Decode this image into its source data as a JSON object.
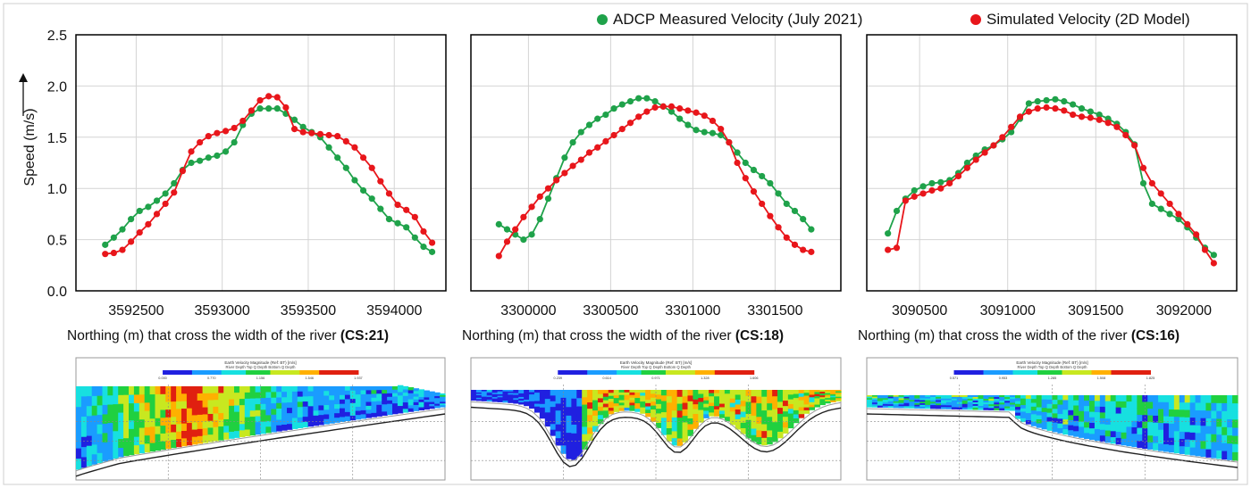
{
  "legend": {
    "measured": "ADCP Measured Velocity (July 2021)",
    "simulated": "Simulated Velocity (2D Model)"
  },
  "colors": {
    "measured": "#1fa24a",
    "simulated": "#e8161b",
    "panel_border": "#000000"
  },
  "ylabel": "Speed (m/s)",
  "xlabel_prefix": "Northing (m) that cross the width of the river",
  "chart_data": [
    {
      "type": "line",
      "section": "(CS:21)",
      "ylim": [
        0,
        2.5
      ],
      "yticks": [
        "0.0",
        "0.5",
        "1.0",
        "1.5",
        "2.0",
        "2.5"
      ],
      "xlim": [
        3592150,
        3594300
      ],
      "xticks": [
        3592500,
        3593000,
        3593500,
        3594000
      ],
      "grid": true,
      "series": [
        {
          "name": "ADCP Measured Velocity (July 2021)",
          "color": "#1fa24a",
          "x": [
            3592320,
            3592370,
            3592420,
            3592470,
            3592520,
            3592570,
            3592620,
            3592670,
            3592720,
            3592770,
            3592820,
            3592870,
            3592920,
            3592970,
            3593020,
            3593070,
            3593120,
            3593170,
            3593220,
            3593270,
            3593320,
            3593370,
            3593420,
            3593470,
            3593520,
            3593570,
            3593620,
            3593670,
            3593720,
            3593770,
            3593820,
            3593870,
            3593920,
            3593970,
            3594020,
            3594070,
            3594120,
            3594170,
            3594220
          ],
          "y": [
            0.45,
            0.52,
            0.6,
            0.7,
            0.78,
            0.82,
            0.88,
            0.95,
            1.05,
            1.18,
            1.25,
            1.27,
            1.3,
            1.32,
            1.36,
            1.45,
            1.62,
            1.73,
            1.78,
            1.78,
            1.78,
            1.73,
            1.67,
            1.6,
            1.55,
            1.5,
            1.4,
            1.3,
            1.2,
            1.08,
            0.98,
            0.9,
            0.8,
            0.7,
            0.66,
            0.62,
            0.52,
            0.43,
            0.38
          ]
        },
        {
          "name": "Simulated Velocity (2D Model)",
          "color": "#e8161b",
          "x": [
            3592320,
            3592370,
            3592420,
            3592470,
            3592520,
            3592570,
            3592620,
            3592670,
            3592720,
            3592770,
            3592820,
            3592870,
            3592920,
            3592970,
            3593020,
            3593070,
            3593120,
            3593170,
            3593220,
            3593270,
            3593320,
            3593370,
            3593420,
            3593470,
            3593520,
            3593570,
            3593620,
            3593670,
            3593720,
            3593770,
            3593820,
            3593870,
            3593920,
            3593970,
            3594020,
            3594070,
            3594120,
            3594170,
            3594220
          ],
          "y": [
            0.36,
            0.37,
            0.4,
            0.48,
            0.57,
            0.65,
            0.75,
            0.85,
            0.96,
            1.17,
            1.36,
            1.45,
            1.51,
            1.54,
            1.56,
            1.59,
            1.66,
            1.76,
            1.86,
            1.9,
            1.89,
            1.79,
            1.58,
            1.55,
            1.54,
            1.53,
            1.52,
            1.51,
            1.46,
            1.4,
            1.3,
            1.2,
            1.07,
            0.95,
            0.84,
            0.79,
            0.72,
            0.58,
            0.47
          ]
        }
      ]
    },
    {
      "type": "line",
      "section": "(CS:18)",
      "ylim": [
        0,
        2.5
      ],
      "xlim": [
        3299650,
        3301900
      ],
      "xticks": [
        3300000,
        3300500,
        3301000,
        3301500
      ],
      "grid": true,
      "series": [
        {
          "name": "ADCP Measured Velocity (July 2021)",
          "color": "#1fa24a",
          "x": [
            3299820,
            3299870,
            3299920,
            3299970,
            3300020,
            3300070,
            3300120,
            3300170,
            3300220,
            3300270,
            3300320,
            3300370,
            3300420,
            3300470,
            3300520,
            3300570,
            3300620,
            3300670,
            3300720,
            3300770,
            3300820,
            3300870,
            3300920,
            3300970,
            3301020,
            3301070,
            3301120,
            3301170,
            3301220,
            3301270,
            3301320,
            3301370,
            3301420,
            3301470,
            3301520,
            3301570,
            3301620,
            3301670,
            3301720
          ],
          "y": [
            0.65,
            0.6,
            0.55,
            0.5,
            0.55,
            0.7,
            0.9,
            1.1,
            1.3,
            1.45,
            1.55,
            1.62,
            1.68,
            1.72,
            1.78,
            1.82,
            1.85,
            1.88,
            1.88,
            1.85,
            1.8,
            1.75,
            1.68,
            1.62,
            1.57,
            1.55,
            1.54,
            1.52,
            1.45,
            1.35,
            1.25,
            1.18,
            1.12,
            1.05,
            0.95,
            0.85,
            0.78,
            0.7,
            0.6
          ]
        },
        {
          "name": "Simulated Velocity (2D Model)",
          "color": "#e8161b",
          "x": [
            3299820,
            3299870,
            3299920,
            3299970,
            3300020,
            3300070,
            3300120,
            3300170,
            3300220,
            3300270,
            3300320,
            3300370,
            3300420,
            3300470,
            3300520,
            3300570,
            3300620,
            3300670,
            3300720,
            3300770,
            3300820,
            3300870,
            3300920,
            3300970,
            3301020,
            3301070,
            3301120,
            3301170,
            3301220,
            3301270,
            3301320,
            3301370,
            3301420,
            3301470,
            3301520,
            3301570,
            3301620,
            3301670,
            3301720
          ],
          "y": [
            0.34,
            0.48,
            0.6,
            0.72,
            0.82,
            0.92,
            1.0,
            1.08,
            1.15,
            1.22,
            1.28,
            1.35,
            1.4,
            1.46,
            1.52,
            1.58,
            1.64,
            1.7,
            1.75,
            1.79,
            1.8,
            1.8,
            1.78,
            1.76,
            1.74,
            1.71,
            1.66,
            1.58,
            1.45,
            1.25,
            1.1,
            0.97,
            0.85,
            0.73,
            0.62,
            0.52,
            0.45,
            0.4,
            0.38
          ]
        }
      ]
    },
    {
      "type": "line",
      "section": "(CS:16)",
      "ylim": [
        0,
        2.5
      ],
      "xlim": [
        3090200,
        3092300
      ],
      "xticks": [
        3090500,
        3091000,
        3091500,
        3092000
      ],
      "grid": true,
      "series": [
        {
          "name": "ADCP Measured Velocity (July 2021)",
          "color": "#1fa24a",
          "x": [
            3090320,
            3090370,
            3090420,
            3090470,
            3090520,
            3090570,
            3090620,
            3090670,
            3090720,
            3090770,
            3090820,
            3090870,
            3090920,
            3090970,
            3091020,
            3091070,
            3091120,
            3091170,
            3091220,
            3091270,
            3091320,
            3091370,
            3091420,
            3091470,
            3091520,
            3091570,
            3091620,
            3091670,
            3091720,
            3091770,
            3091820,
            3091870,
            3091920,
            3091970,
            3092020,
            3092070,
            3092120,
            3092170
          ],
          "y": [
            0.56,
            0.78,
            0.9,
            0.98,
            1.02,
            1.05,
            1.06,
            1.08,
            1.15,
            1.25,
            1.32,
            1.38,
            1.42,
            1.48,
            1.55,
            1.68,
            1.83,
            1.85,
            1.86,
            1.87,
            1.85,
            1.82,
            1.78,
            1.75,
            1.72,
            1.68,
            1.63,
            1.55,
            1.43,
            1.05,
            0.85,
            0.8,
            0.75,
            0.7,
            0.62,
            0.52,
            0.42,
            0.35
          ]
        },
        {
          "name": "Simulated Velocity (2D Model)",
          "color": "#e8161b",
          "x": [
            3090320,
            3090370,
            3090420,
            3090470,
            3090520,
            3090570,
            3090620,
            3090670,
            3090720,
            3090770,
            3090820,
            3090870,
            3090920,
            3090970,
            3091020,
            3091070,
            3091120,
            3091170,
            3091220,
            3091270,
            3091320,
            3091370,
            3091420,
            3091470,
            3091520,
            3091570,
            3091620,
            3091670,
            3091720,
            3091770,
            3091820,
            3091870,
            3091920,
            3091970,
            3092020,
            3092070,
            3092120,
            3092170
          ],
          "y": [
            0.4,
            0.42,
            0.88,
            0.92,
            0.95,
            0.98,
            1.0,
            1.05,
            1.12,
            1.2,
            1.28,
            1.35,
            1.42,
            1.5,
            1.6,
            1.7,
            1.75,
            1.78,
            1.79,
            1.78,
            1.76,
            1.72,
            1.7,
            1.69,
            1.67,
            1.64,
            1.6,
            1.52,
            1.42,
            1.2,
            1.05,
            0.95,
            0.85,
            0.75,
            0.65,
            0.55,
            0.4,
            0.27
          ]
        }
      ]
    }
  ],
  "profiles": [
    {
      "title": "Earth Velocity Magnitude (Ref: BT) [m/s]",
      "legend": [
        "River Depth",
        "Top Q Depth",
        "Bottom Q Depth"
      ],
      "scale": [
        "0.000",
        "0.770",
        "1.156",
        "1.546",
        "1.937"
      ]
    },
    {
      "title": "Earth Velocity Magnitude (Ref: BT) [m/s]",
      "legend": [
        "River Depth",
        "Top Q Depth",
        "Bottom Q Depth"
      ],
      "scale": [
        "0.239",
        "0.614",
        "0.971",
        "1.328",
        "1.606"
      ]
    },
    {
      "title": "Earth Velocity Magnitude (Ref: BT) [m/s]",
      "legend": [
        "River Depth",
        "Top Q Depth",
        "Bottom Q Depth"
      ],
      "scale": [
        "0.571",
        "0.953",
        "1.285",
        "1.508",
        "1.825"
      ]
    }
  ]
}
